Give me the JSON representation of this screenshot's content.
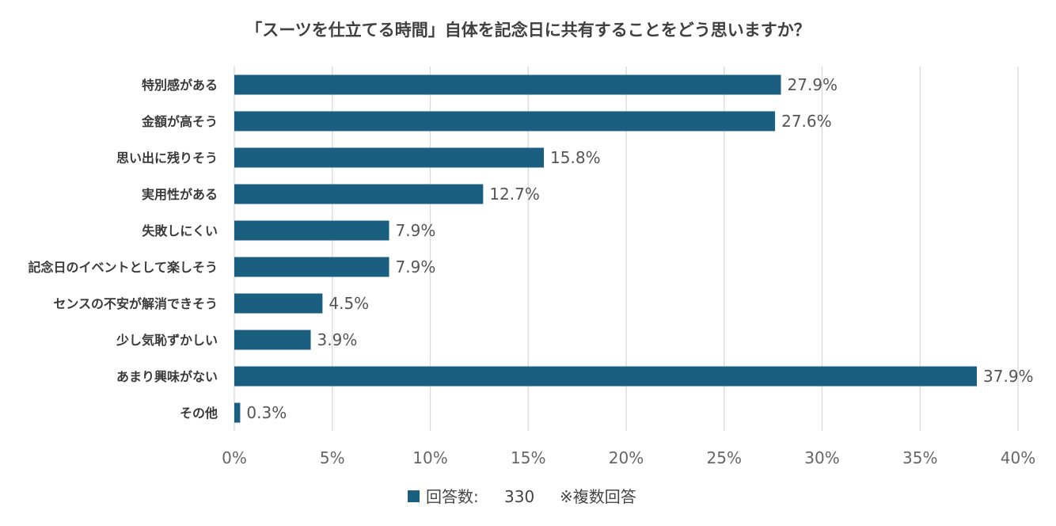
{
  "chart_data": {
    "type": "bar",
    "orientation": "horizontal",
    "title": "「スーツを仕立てる時間」自体を記念日に共有することをどう思いますか？",
    "categories": [
      "特別感がある",
      "金額が高そう",
      "思い出に残りそう",
      "実用性がある",
      "失敗しにくい",
      "記念日のイベントとして楽しそう",
      "センスの不安が解消できそう",
      "少し気恥ずかしい",
      "あまり興味がない",
      "その他"
    ],
    "values": [
      27.9,
      27.6,
      15.8,
      12.7,
      7.9,
      7.9,
      4.5,
      3.9,
      37.9,
      0.3
    ],
    "data_labels": [
      "27.9%",
      "27.6%",
      "15.8%",
      "12.7%",
      "7.9%",
      "7.9%",
      "4.5%",
      "3.9%",
      "37.9%",
      "0.3%"
    ],
    "x_ticks": [
      0,
      5,
      10,
      15,
      20,
      25,
      30,
      35,
      40
    ],
    "x_tick_labels": [
      "0%",
      "5%",
      "10%",
      "15%",
      "20%",
      "25%",
      "30%",
      "35%",
      "40%"
    ],
    "xlim": [
      0,
      40
    ],
    "grid": true,
    "legend_position": "bottom",
    "legend_label": "回答数:",
    "legend_count": "330",
    "note": "※複数回答",
    "bar_color": "#1a5e80",
    "grid_color": "#d9d9d9"
  }
}
